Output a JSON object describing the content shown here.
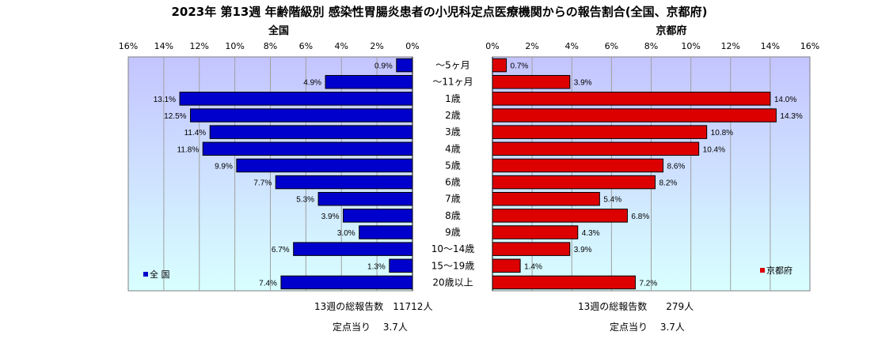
{
  "title": "2023年 第13週  年齢階級別 感染性胃腸炎患者の小児科定点医療機関からの報告割合(全国、京都府)",
  "chart_data": [
    {
      "type": "bar",
      "orientation": "horizontal",
      "direction": "right-to-left",
      "title": "全国",
      "categories": [
        "～5ヶ月",
        "～11ヶ月",
        "1歳",
        "2歳",
        "3歳",
        "4歳",
        "5歳",
        "6歳",
        "7歳",
        "8歳",
        "9歳",
        "10～14歳",
        "15～19歳",
        "20歳以上"
      ],
      "series": [
        {
          "name": "全 国",
          "color": "#0000cc",
          "values": [
            0.9,
            4.9,
            13.1,
            12.5,
            11.4,
            11.8,
            9.9,
            7.7,
            5.3,
            3.9,
            3.0,
            6.7,
            1.3,
            7.4
          ],
          "labels": [
            "0.9%",
            "4.9%",
            "13.1%",
            "12.5%",
            "11.4%",
            "11.8%",
            "9.9%",
            "7.7%",
            "5.3%",
            "3.9%",
            "3.0%",
            "6.7%",
            "1.3%",
            "7.4%"
          ]
        }
      ],
      "xlim": [
        0,
        16
      ],
      "ticks": [
        "0%",
        "2%",
        "4%",
        "6%",
        "8%",
        "10%",
        "12%",
        "14%",
        "16%"
      ],
      "grid": true,
      "legend_position": "bottom-left"
    },
    {
      "type": "bar",
      "orientation": "horizontal",
      "direction": "left-to-right",
      "title": "京都府",
      "categories": [
        "～5ヶ月",
        "～11ヶ月",
        "1歳",
        "2歳",
        "3歳",
        "4歳",
        "5歳",
        "6歳",
        "7歳",
        "8歳",
        "9歳",
        "10～14歳",
        "15～19歳",
        "20歳以上"
      ],
      "series": [
        {
          "name": "京都府",
          "color": "#dd0000",
          "values": [
            0.7,
            3.9,
            14.0,
            14.3,
            10.8,
            10.4,
            8.6,
            8.2,
            5.4,
            6.8,
            4.3,
            3.9,
            1.4,
            7.2
          ],
          "labels": [
            "0.7%",
            "3.9%",
            "14.0%",
            "14.3%",
            "10.8%",
            "10.4%",
            "8.6%",
            "8.2%",
            "5.4%",
            "6.8%",
            "4.3%",
            "3.9%",
            "1.4%",
            "7.2%"
          ]
        }
      ],
      "xlim": [
        0,
        16
      ],
      "ticks": [
        "0%",
        "2%",
        "4%",
        "6%",
        "8%",
        "10%",
        "12%",
        "14%",
        "16%"
      ],
      "grid": true,
      "legend_position": "bottom-right"
    }
  ],
  "footer": {
    "national_total": "13週の総報告数　11712人",
    "national_per_site": "定点当り　  3.7人",
    "kyoto_total": "13週の総報告数　　279人",
    "kyoto_per_site": "定点当り　  3.7人"
  },
  "colors": {
    "plot_gradient_top": "#c4c4ff",
    "plot_gradient_bottom": "#d8ffff",
    "national_bar": "#0000cc",
    "kyoto_bar": "#dd0000"
  }
}
